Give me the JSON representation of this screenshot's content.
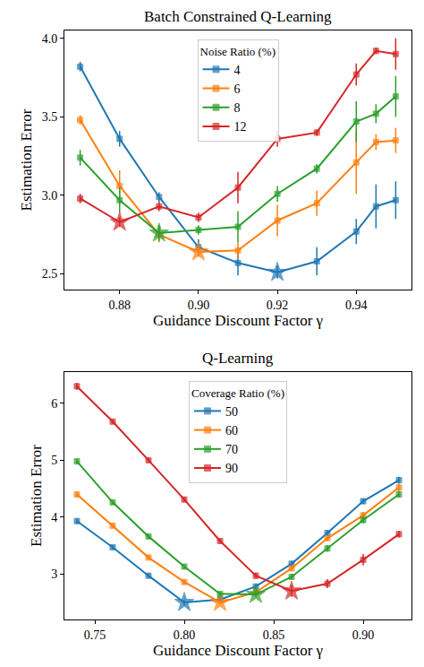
{
  "chart_data": [
    {
      "type": "line",
      "title": "Batch Constrained Q-Learning",
      "x_label": "Guidance Discount Factor γ",
      "y_label": "Estimation Error",
      "legend_title": "Noise Ratio (%)",
      "legend": "upper center",
      "grid": false,
      "marker": "square",
      "x": [
        0.87,
        0.88,
        0.89,
        0.9,
        0.91,
        0.92,
        0.93,
        0.94,
        0.945,
        0.95
      ],
      "series": [
        {
          "name": "4",
          "color": "#1f77b4",
          "values": [
            3.82,
            3.36,
            2.99,
            2.67,
            2.57,
            2.51,
            2.58,
            2.77,
            2.93,
            2.97
          ],
          "errors": [
            0.03,
            0.05,
            0.03,
            0.05,
            0.08,
            0.04,
            0.09,
            0.08,
            0.14,
            0.12
          ]
        },
        {
          "name": "6",
          "color": "#ff7f0e",
          "values": [
            3.48,
            3.06,
            2.75,
            2.64,
            2.65,
            2.84,
            2.95,
            3.21,
            3.34,
            3.35
          ],
          "errors": [
            0.03,
            0.1,
            0.05,
            0.03,
            0.05,
            0.1,
            0.08,
            0.2,
            0.05,
            0.08
          ]
        },
        {
          "name": "8",
          "color": "#2ca02c",
          "values": [
            3.24,
            2.97,
            2.76,
            2.78,
            2.8,
            3.01,
            3.17,
            3.47,
            3.52,
            3.63
          ],
          "errors": [
            0.05,
            0.08,
            0.05,
            0.03,
            0.1,
            0.05,
            0.03,
            0.13,
            0.06,
            0.13
          ]
        },
        {
          "name": "12",
          "color": "#d62728",
          "values": [
            2.98,
            2.83,
            2.93,
            2.86,
            3.05,
            3.36,
            3.4,
            3.77,
            3.92,
            3.9
          ],
          "errors": [
            0.03,
            0.03,
            0.03,
            0.03,
            0.1,
            0.05,
            0.02,
            0.07,
            0.02,
            0.1
          ]
        }
      ],
      "xlim": [
        0.866,
        0.954
      ],
      "ylim": [
        2.4,
        4.05
      ],
      "xticks": [
        0.88,
        {
          "value": 0.9,
          "label": "0.90"
        },
        0.92,
        0.94
      ],
      "yticks": [
        2.5,
        {
          "value": 3,
          "label": "3.0"
        },
        3.5,
        {
          "value": 4,
          "label": "4.0"
        }
      ]
    },
    {
      "type": "line",
      "title": "Q-Learning",
      "x_label": "Guidance Discount Factor γ",
      "y_label": "Estimation Error",
      "legend_title": "Coverage Ratio (%)",
      "legend": "upper center",
      "grid": false,
      "marker": "square",
      "x": [
        0.74,
        0.76,
        0.78,
        0.8,
        0.82,
        0.84,
        0.86,
        0.88,
        0.9,
        0.92
      ],
      "series": [
        {
          "name": "50",
          "color": "#1f77b4",
          "values": [
            3.93,
            3.47,
            2.97,
            2.5,
            2.55,
            2.78,
            3.18,
            3.72,
            4.28,
            4.65
          ],
          "errors": [
            0.05,
            0.04,
            0.04,
            0.05,
            0.04,
            0.05,
            0.05,
            0.05,
            0.05,
            0.06
          ]
        },
        {
          "name": "60",
          "color": "#ff7f0e",
          "values": [
            4.4,
            3.85,
            3.29,
            2.86,
            2.5,
            2.68,
            3.1,
            3.63,
            4.03,
            4.52
          ],
          "errors": [
            0.05,
            0.04,
            0.04,
            0.04,
            0.04,
            0.05,
            0.05,
            0.05,
            0.06,
            0.06
          ]
        },
        {
          "name": "70",
          "color": "#2ca02c",
          "values": [
            4.98,
            4.26,
            3.66,
            3.13,
            2.65,
            2.64,
            2.95,
            3.45,
            3.95,
            4.4
          ],
          "errors": [
            0.05,
            0.04,
            0.04,
            0.04,
            0.04,
            0.05,
            0.05,
            0.06,
            0.06,
            0.06
          ]
        },
        {
          "name": "90",
          "color": "#d62728",
          "values": [
            6.3,
            5.68,
            5.0,
            4.31,
            3.58,
            2.97,
            2.7,
            2.83,
            3.25,
            3.7
          ],
          "errors": [
            0.06,
            0.04,
            0.04,
            0.04,
            0.04,
            0.05,
            0.1,
            0.08,
            0.1,
            0.06
          ]
        }
      ],
      "xlim": [
        0.733,
        0.927
      ],
      "ylim": [
        2.2,
        6.55
      ],
      "xticks": [
        0.75,
        {
          "value": 0.8,
          "label": "0.80"
        },
        0.85,
        {
          "value": 0.9,
          "label": "0.90"
        }
      ],
      "yticks": [
        3,
        4,
        5,
        6
      ]
    }
  ]
}
